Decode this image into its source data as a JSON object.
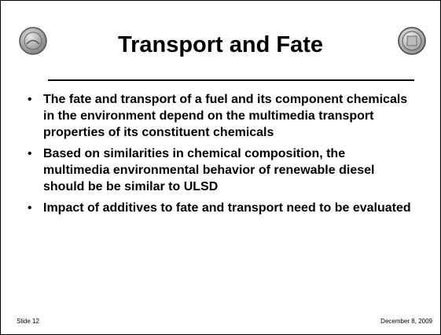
{
  "slide": {
    "title": "Transport and Fate",
    "bullets": [
      "The fate and transport of a fuel and its component chemicals in the environment depend on the multimedia transport properties of its constituent chemicals",
      "Based on similarities in chemical composition, the multimedia environmental behavior of renewable diesel should be be similar to ULSD",
      "Impact of additives to fate and transport need to be evaluated"
    ],
    "footer_left": "Slide 12",
    "footer_right": "December 8, 2009"
  }
}
